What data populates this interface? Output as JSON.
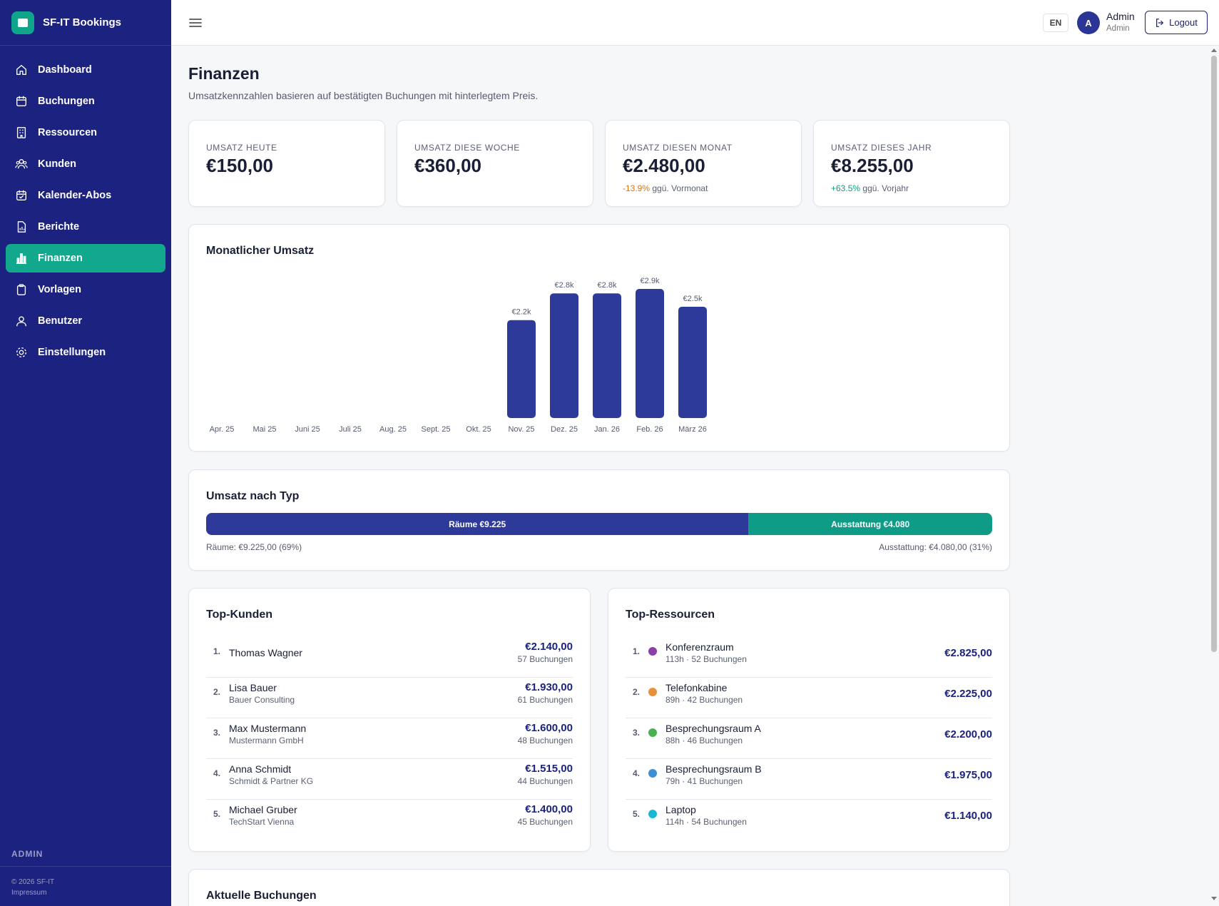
{
  "brand": {
    "name": "SF-IT Bookings"
  },
  "sidebar": {
    "items": [
      {
        "label": "Dashboard",
        "icon": "home-icon"
      },
      {
        "label": "Buchungen",
        "icon": "calendar-icon"
      },
      {
        "label": "Ressourcen",
        "icon": "building-icon"
      },
      {
        "label": "Kunden",
        "icon": "users-icon"
      },
      {
        "label": "Kalender-Abos",
        "icon": "calendar-check-icon"
      },
      {
        "label": "Berichte",
        "icon": "report-icon"
      },
      {
        "label": "Finanzen",
        "icon": "chart-icon",
        "active": true
      },
      {
        "label": "Vorlagen",
        "icon": "clipboard-icon"
      },
      {
        "label": "Benutzer",
        "icon": "user-icon"
      },
      {
        "label": "Einstellungen",
        "icon": "gear-icon"
      }
    ],
    "role": "ADMIN",
    "copyright": "© 2026 SF-IT",
    "imprint": "Impressum"
  },
  "header": {
    "lang": "EN",
    "avatar_initial": "A",
    "user_name": "Admin",
    "user_role": "Admin",
    "logout_label": "Logout"
  },
  "page": {
    "title": "Finanzen",
    "subtitle": "Umsatzkennzahlen basieren auf bestätigten Buchungen mit hinterlegtem Preis."
  },
  "kpis": [
    {
      "label": "UMSATZ HEUTE",
      "value": "€150,00"
    },
    {
      "label": "UMSATZ DIESE WOCHE",
      "value": "€360,00"
    },
    {
      "label": "UMSATZ DIESEN MONAT",
      "value": "€2.480,00",
      "delta": "-13.9%",
      "delta_text": "ggü. Vormonat"
    },
    {
      "label": "UMSATZ DIESES JAHR",
      "value": "€8.255,00",
      "delta": "+63.5%",
      "delta_text": "ggü. Vorjahr"
    }
  ],
  "monthly": {
    "title": "Monatlicher Umsatz"
  },
  "chart_data": {
    "type": "bar",
    "title": "Monatlicher Umsatz",
    "categories": [
      "Apr. 25",
      "Mai 25",
      "Juni 25",
      "Juli 25",
      "Aug. 25",
      "Sept. 25",
      "Okt. 25",
      "Nov. 25",
      "Dez. 25",
      "Jan. 26",
      "Feb. 26",
      "März 26"
    ],
    "values": [
      0,
      0,
      0,
      0,
      0,
      0,
      0,
      2200,
      2800,
      2800,
      2900,
      2500
    ],
    "data_labels": [
      "",
      "",
      "",
      "",
      "",
      "",
      "",
      "€2.2k",
      "€2.8k",
      "€2.8k",
      "€2.9k",
      "€2.5k"
    ],
    "color": "#2e3a9a",
    "grid": false
  },
  "by_type": {
    "title": "Umsatz nach Typ",
    "rooms_share": 0.69,
    "rooms_bar_label": "Räume €9.225",
    "equip_bar_label": "Ausstattung €4.080",
    "rooms_legend": "Räume: €9.225,00 (69%)",
    "equip_legend": "Ausstattung: €4.080,00 (31%)"
  },
  "top_customers": {
    "title": "Top-Kunden",
    "rows": [
      {
        "rank": "1.",
        "name": "Thomas Wagner",
        "sub": "",
        "amount": "€2.140,00",
        "count": "57 Buchungen"
      },
      {
        "rank": "2.",
        "name": "Lisa Bauer",
        "sub": "Bauer Consulting",
        "amount": "€1.930,00",
        "count": "61 Buchungen"
      },
      {
        "rank": "3.",
        "name": "Max Mustermann",
        "sub": "Mustermann GmbH",
        "amount": "€1.600,00",
        "count": "48 Buchungen"
      },
      {
        "rank": "4.",
        "name": "Anna Schmidt",
        "sub": "Schmidt & Partner KG",
        "amount": "€1.515,00",
        "count": "44 Buchungen"
      },
      {
        "rank": "5.",
        "name": "Michael Gruber",
        "sub": "TechStart Vienna",
        "amount": "€1.400,00",
        "count": "45 Buchungen"
      }
    ]
  },
  "top_resources": {
    "title": "Top-Ressourcen",
    "rows": [
      {
        "rank": "1.",
        "name": "Konferenzraum",
        "sub": "113h · 52 Buchungen",
        "amount": "€2.825,00",
        "color": "#8e3ea8"
      },
      {
        "rank": "2.",
        "name": "Telefonkabine",
        "sub": "89h · 42 Buchungen",
        "amount": "€2.225,00",
        "color": "#e8913a"
      },
      {
        "rank": "3.",
        "name": "Besprechungsraum A",
        "sub": "88h · 46 Buchungen",
        "amount": "€2.200,00",
        "color": "#4caf50"
      },
      {
        "rank": "4.",
        "name": "Besprechungsraum B",
        "sub": "79h · 41 Buchungen",
        "amount": "€1.975,00",
        "color": "#3a8fd8"
      },
      {
        "rank": "5.",
        "name": "Laptop",
        "sub": "114h · 54 Buchungen",
        "amount": "€1.140,00",
        "color": "#16b8d6"
      }
    ]
  },
  "recent": {
    "title": "Aktuelle Buchungen"
  }
}
